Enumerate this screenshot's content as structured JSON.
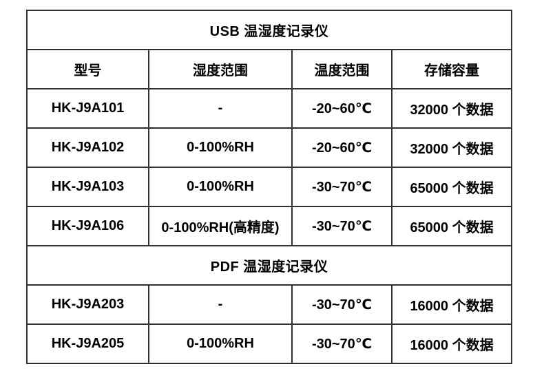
{
  "style": {
    "border_color": "#303030",
    "text_color": "#000000",
    "background": "#ffffff"
  },
  "table": {
    "columns": [
      "型号",
      "湿度范围",
      "温度范围",
      "存储容量"
    ],
    "sections": [
      {
        "title": "USB 温湿度记录仪",
        "rows": [
          [
            "HK-J9A101",
            "-",
            "-20~60℃",
            "32000 个数据"
          ],
          [
            "HK-J9A102",
            "0-100%RH",
            "-20~60℃",
            "32000 个数据"
          ],
          [
            "HK-J9A103",
            "0-100%RH",
            "-30~70℃",
            "65000 个数据"
          ],
          [
            "HK-J9A106",
            "0-100%RH(高精度)",
            "-30~70℃",
            "65000 个数据"
          ]
        ]
      },
      {
        "title": "PDF 温湿度记录仪",
        "rows": [
          [
            "HK-J9A203",
            "-",
            "-30~70℃",
            "16000 个数据"
          ],
          [
            "HK-J9A205",
            "0-100%RH",
            "-30~70℃",
            "16000 个数据"
          ]
        ]
      }
    ]
  }
}
